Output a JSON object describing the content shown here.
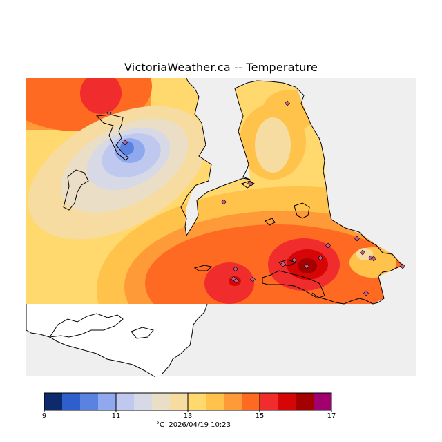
{
  "map": {
    "title": "VictoriaWeather.ca -- Temperature",
    "unit": "°C",
    "timestamp": "2026/04/19 10:23",
    "background_color": "#efefef",
    "coastline_color": "#000000",
    "station_marker": "diamond"
  },
  "colorbar": {
    "ticks": [
      "9",
      "11",
      "13",
      "15",
      "17"
    ],
    "colors": [
      "#0d2a6b",
      "#2f5fcc",
      "#5a82e0",
      "#8fa8ee",
      "#bfc9f0",
      "#d7d9e6",
      "#eadfc6",
      "#f6dca0",
      "#ffd86e",
      "#ffc24a",
      "#ff9a38",
      "#ff6a22",
      "#f02c2c",
      "#d60606",
      "#a30000",
      "#a3006f"
    ]
  }
}
